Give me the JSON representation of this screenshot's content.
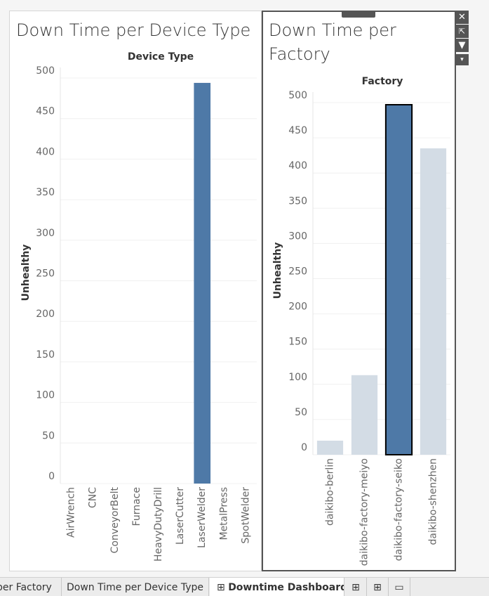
{
  "chart_data": [
    {
      "type": "bar",
      "title": "Down Time per Device Type",
      "x_label": "Device Type",
      "y_label": "Unhealthy",
      "categories": [
        "AirWrench",
        "CNC",
        "ConveyorBelt",
        "Furnace",
        "HeavyDutyDrill",
        "LaserCutter",
        "LaserWelder",
        "MetalPress",
        "SpotWelder"
      ],
      "values": [
        0,
        0,
        0,
        0,
        0,
        0,
        494,
        0,
        0
      ],
      "colors": [
        "#4e79a7",
        "#4e79a7",
        "#4e79a7",
        "#4e79a7",
        "#4e79a7",
        "#4e79a7",
        "#4e79a7",
        "#4e79a7",
        "#4e79a7"
      ],
      "ylim": [
        0,
        500
      ],
      "yticks": [
        0,
        50,
        100,
        150,
        200,
        250,
        300,
        350,
        400,
        450,
        500
      ],
      "grid": true
    },
    {
      "type": "bar",
      "title": "Down Time per Factory",
      "x_label": "Factory",
      "y_label": "Unhealthy",
      "categories": [
        "daikibo-berlin",
        "daikibo-factory-meiyo",
        "daikibo-factory-seiko",
        "daikibo-shenzhen"
      ],
      "values": [
        20,
        113,
        497,
        435
      ],
      "colors": [
        "#d3dce5",
        "#d3dce5",
        "#4e79a7",
        "#d3dce5"
      ],
      "selected_index": 2,
      "ylim": [
        0,
        500
      ],
      "yticks": [
        0,
        50,
        100,
        150,
        200,
        250,
        300,
        350,
        400,
        450,
        500
      ],
      "grid": true
    }
  ],
  "tabs": [
    "per Factory",
    "Down Time per Device Type",
    "Downtime Dashboard"
  ]
}
